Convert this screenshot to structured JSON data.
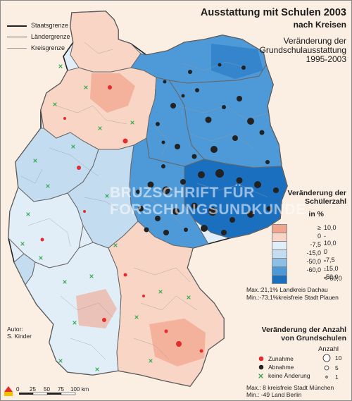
{
  "title": "Ausstattung mit Schulen 2003",
  "subtitle": "nach Kreisen",
  "map_subtitle_lines": [
    "Veränderung der",
    "Grundschulausstattung",
    "1995-2003"
  ],
  "line_legend": [
    {
      "label": "Staatsgrenze",
      "color": "#222222",
      "width": 1.6
    },
    {
      "label": "Ländergrenze",
      "color": "#666666",
      "width": 1.0
    },
    {
      "label": "Kreisgrenze",
      "color": "#9a9a9a",
      "width": 0.5
    }
  ],
  "choropleth_legend": {
    "title_lines": [
      "Veränderung der",
      "Schülerzahl"
    ],
    "unit": "in %",
    "classes": [
      {
        "low": "≥",
        "high": "10,0",
        "color": "#f1a58e"
      },
      {
        "low": "0",
        "high": "- 10,0",
        "color": "#f9d5c5"
      },
      {
        "low": "-7,5",
        "high": "- 0",
        "color": "#e2eef7"
      },
      {
        "low": "-15,0",
        "high": "- -7,5",
        "color": "#c3dcf0"
      },
      {
        "low": "-50,0",
        "high": "- -15,0",
        "color": "#8cbfe6"
      },
      {
        "low": "-60,0",
        "high": "- -50,0",
        "color": "#4e9ad8"
      },
      {
        "low": "",
        "high": "<-60,0",
        "color": "#1a6fbf"
      }
    ],
    "max_text": "Max.:21,1% Landkreis Dachau",
    "min_text": "Min.:-73,1%kreisfreie Stadt Plauen"
  },
  "symbol_legend": {
    "title_lines": [
      "Veränderung der Anzahl",
      "von Grundschulen"
    ],
    "size_title": "Anzahl",
    "items": [
      {
        "label": "Zunahme",
        "color": "#e52b2b",
        "symbol": "dot"
      },
      {
        "label": "Abnahme",
        "color": "#222222",
        "symbol": "dot"
      },
      {
        "label": "keine Änderung",
        "color": "#2ea84a",
        "symbol": "cross"
      }
    ],
    "sizes": [
      "10",
      "5",
      "1"
    ],
    "max_text": "Max.:   8 kreisfreie Stadt München",
    "min_text": "Min.: -49 Land Berlin"
  },
  "author_lines": [
    "Autor:",
    "S. Kinder"
  ],
  "scale": {
    "ticks": [
      "0",
      "25",
      "50",
      "75",
      "100 km"
    ]
  },
  "watermark_lines": [
    "BRUZSCHRIFT FÜR",
    "FORSCHUNGSUNDKUNDE"
  ],
  "regions": [
    {
      "name": "Schleswig-Holstein",
      "color": "#f9d5c5"
    },
    {
      "name": "Mecklenburg-Vorpommern",
      "color": "#4e9ad8"
    },
    {
      "name": "Niedersachsen",
      "color": "#f9d5c5"
    },
    {
      "name": "Brandenburg",
      "color": "#4e9ad8"
    },
    {
      "name": "Sachsen-Anhalt",
      "color": "#4e9ad8"
    },
    {
      "name": "Sachsen",
      "color": "#1a6fbf"
    },
    {
      "name": "Thüringen",
      "color": "#4e9ad8"
    },
    {
      "name": "Nordrhein-Westfalen",
      "color": "#c3dcf0"
    },
    {
      "name": "Hessen",
      "color": "#c3dcf0"
    },
    {
      "name": "Rheinland-Pfalz",
      "color": "#e2eef7"
    },
    {
      "name": "Saarland",
      "color": "#c3dcf0"
    },
    {
      "name": "Baden-Württemberg",
      "color": "#e2eef7"
    },
    {
      "name": "Bayern",
      "color": "#f9d5c5"
    }
  ]
}
